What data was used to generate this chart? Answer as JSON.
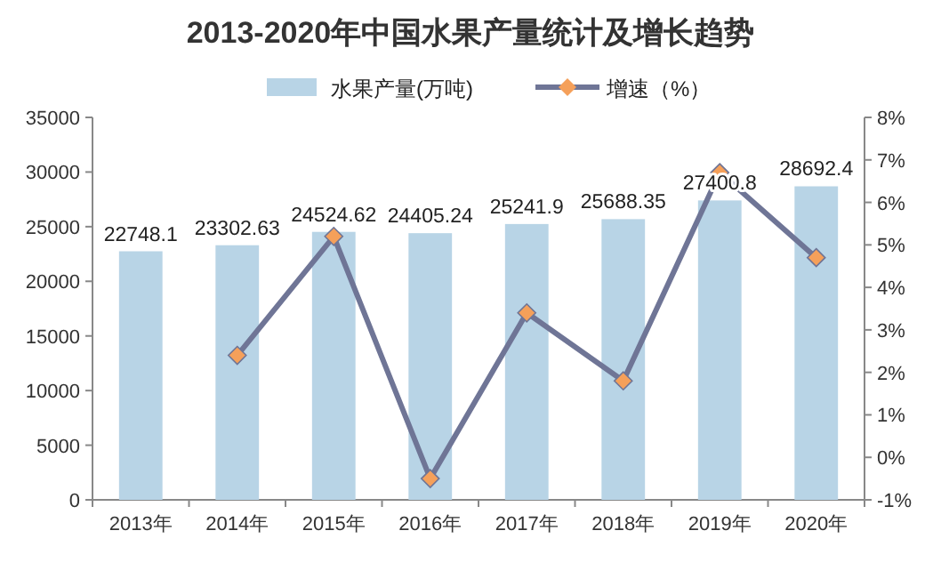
{
  "chart_data": {
    "type": "bar",
    "title": "2013-2020年中国水果产量统计及增长趋势",
    "categories": [
      "2013年",
      "2014年",
      "2015年",
      "2016年",
      "2017年",
      "2018年",
      "2019年",
      "2020年"
    ],
    "series": [
      {
        "name": "水果产量(万吨)",
        "color": "#b8d4e6",
        "values": [
          22748.1,
          23302.63,
          24524.62,
          24405.24,
          25241.9,
          25688.35,
          27400.8,
          28692.4
        ],
        "data_labels": true
      },
      {
        "name": "增速（%）",
        "type": "line",
        "axis": "y2",
        "color": "#6f7596",
        "marker": "diamond",
        "values": [
          null,
          2.4,
          5.2,
          -0.5,
          3.4,
          1.8,
          6.7,
          4.7
        ]
      }
    ],
    "ylim": [
      0,
      35000
    ],
    "yticks": [
      0,
      5000,
      10000,
      15000,
      20000,
      25000,
      30000,
      35000
    ],
    "y2lim": [
      -1,
      8
    ],
    "y2ticks": [
      {
        "value": -1,
        "label": "-1%"
      },
      {
        "value": 0,
        "label": "0%"
      },
      {
        "value": 1,
        "label": "1%"
      },
      {
        "value": 2,
        "label": "2%"
      },
      {
        "value": 3,
        "label": "3%"
      },
      {
        "value": 4,
        "label": "4%"
      },
      {
        "value": 5,
        "label": "5%"
      },
      {
        "value": 6,
        "label": "6%"
      },
      {
        "value": 7,
        "label": "7%"
      },
      {
        "value": 8,
        "label": "8%"
      }
    ],
    "grid": false,
    "legend": "top"
  }
}
